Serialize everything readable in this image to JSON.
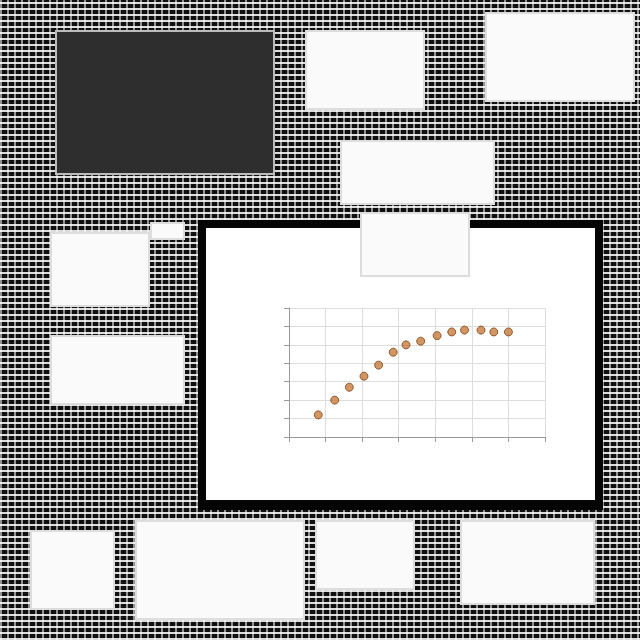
{
  "chart_data": {
    "type": "scatter",
    "x": [
      1.6,
      2.5,
      3.3,
      4.1,
      4.9,
      5.7,
      6.4,
      7.2,
      8.1,
      8.9,
      9.6,
      10.5,
      11.2,
      12.0
    ],
    "values": [
      1.2,
      2.0,
      2.7,
      3.3,
      3.9,
      4.6,
      5.0,
      5.2,
      5.5,
      5.7,
      5.8,
      5.8,
      5.7,
      5.7
    ],
    "color": "#c87a3a",
    "marker": "circle",
    "xlim": [
      0,
      14
    ],
    "xticks": [
      0,
      2,
      4,
      6,
      8,
      10,
      12,
      14
    ],
    "ylim": [
      0,
      7
    ],
    "yticks": [
      0,
      1,
      2,
      3,
      4,
      5,
      6,
      7
    ],
    "grid": true,
    "tick_labels": false
  }
}
